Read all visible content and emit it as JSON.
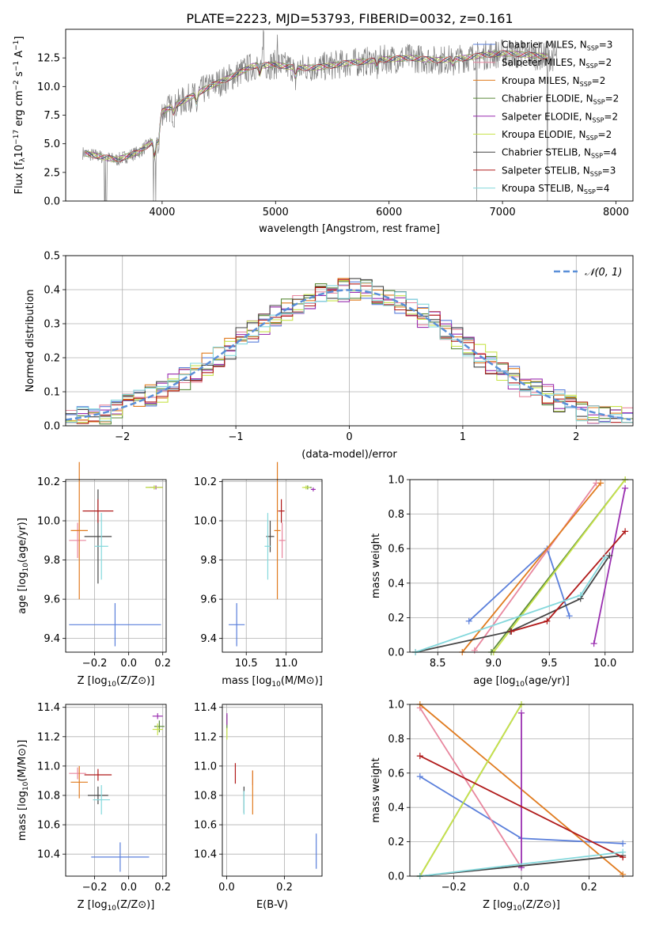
{
  "colors": {
    "Chabrier MILES": "#5a7fdb",
    "Salpeter MILES": "#e8869e",
    "Kroupa MILES": "#e07b1f",
    "Chabrier ELODIE": "#5b8a3a",
    "Salpeter ELODIE": "#9a2fb0",
    "Kroupa ELODIE": "#c8e34b",
    "Chabrier STELIB": "#444444",
    "Salpeter STELIB": "#b01a1a",
    "Kroupa STELIB": "#84d8dc",
    "gauss": "#5a8fd8",
    "grid": "#b0b0b0",
    "spectrum": "#808080"
  },
  "chart_data": [
    {
      "id": "spectrum",
      "type": "line",
      "title": "PLATE=2223, MJD=53793, FIBERID=0032, z=0.161",
      "xlabel": "wavelength [Angstrom, rest frame]",
      "ylabel_parts": [
        "Flux [f",
        "λ",
        "10",
        "−17",
        " erg cm",
        "−2",
        " s",
        "−1",
        " A",
        "−1",
        "]"
      ],
      "xlim": [
        3150,
        8150
      ],
      "ylim": [
        0,
        15
      ],
      "xticks": [
        "4000",
        "5000",
        "6000",
        "7000",
        "8000"
      ],
      "yticks": [
        "0.0",
        "2.5",
        "5.0",
        "7.5",
        "10.0",
        "12.5"
      ],
      "grid": false,
      "legend_position": "top-right",
      "x": [
        3300,
        3500,
        3600,
        3800,
        3950,
        4000,
        4200,
        4400,
        4600,
        4800,
        5000,
        5200,
        5400,
        5600,
        5800,
        6000,
        6200,
        6400,
        6600,
        6800,
        7000,
        7200,
        7400
      ],
      "flux": [
        4.2,
        3.8,
        3.6,
        4.3,
        5.5,
        7.8,
        8.8,
        9.9,
        10.8,
        11.8,
        11.9,
        11.6,
        11.7,
        12.0,
        12.2,
        12.4,
        12.5,
        12.3,
        12.4,
        12.7,
        12.9,
        12.8,
        12.6
      ],
      "series": [
        {
          "name": "Chabrier MILES",
          "nssp": "3"
        },
        {
          "name": "Salpeter MILES",
          "nssp": "2"
        },
        {
          "name": "Kroupa MILES",
          "nssp": "2"
        },
        {
          "name": "Chabrier ELODIE",
          "nssp": "2"
        },
        {
          "name": "Salpeter ELODIE",
          "nssp": "2"
        },
        {
          "name": "Kroupa ELODIE",
          "nssp": "2"
        },
        {
          "name": "Chabrier STELIB",
          "nssp": "4"
        },
        {
          "name": "Salpeter STELIB",
          "nssp": "3"
        },
        {
          "name": "Kroupa STELIB",
          "nssp": "4"
        }
      ]
    },
    {
      "id": "residuals",
      "type": "step",
      "xlabel": "(data-model)/error",
      "ylabel": "Normed distribution",
      "xlim": [
        -2.5,
        2.5
      ],
      "ylim": [
        0,
        0.5
      ],
      "xticks": [
        "−2",
        "−1",
        "0",
        "1",
        "2"
      ],
      "yticks": [
        "0.0",
        "0.1",
        "0.2",
        "0.3",
        "0.4",
        "0.5"
      ],
      "grid": true,
      "legend": "𝒩(0, 1)",
      "legend_position": "top-right"
    },
    {
      "id": "age_vs_Z",
      "type": "errorbar",
      "xlabel": "Z [log10(Z/Z⊙)]",
      "ylabel": "age  [log10(age/yr)]",
      "xlim": [
        -0.37,
        0.22
      ],
      "ylim": [
        9.33,
        10.21
      ],
      "xticks": [
        "−0.2",
        "0.0",
        "0.2"
      ],
      "yticks": [
        "9.4",
        "9.6",
        "9.8",
        "10.0",
        "10.2"
      ],
      "points": [
        {
          "series": "Chabrier MILES",
          "x": -0.08,
          "y": 9.47,
          "xerr": 0.27,
          "yerr": 0.11
        },
        {
          "series": "Salpeter MILES",
          "x": -0.3,
          "y": 9.9,
          "xerr": 0.05,
          "yerr": 0.09
        },
        {
          "series": "Kroupa MILES",
          "x": -0.29,
          "y": 9.95,
          "xerr": 0.05,
          "yerr": 0.35
        },
        {
          "series": "Chabrier ELODIE",
          "x": 0.15,
          "y": 10.17,
          "xerr": 0.05,
          "yerr": 0.01
        },
        {
          "series": "Salpeter ELODIE",
          "x": 0.16,
          "y": 10.17,
          "xerr": 0.04,
          "yerr": 0.01
        },
        {
          "series": "Kroupa ELODIE",
          "x": 0.15,
          "y": 10.17,
          "xerr": 0.05,
          "yerr": 0.01
        },
        {
          "series": "Chabrier STELIB",
          "x": -0.18,
          "y": 9.92,
          "xerr": 0.08,
          "yerr": 0.24
        },
        {
          "series": "Salpeter STELIB",
          "x": -0.18,
          "y": 10.05,
          "xerr": 0.09,
          "yerr": 0.06
        },
        {
          "series": "Kroupa STELIB",
          "x": -0.16,
          "y": 9.87,
          "xerr": 0.04,
          "yerr": 0.17
        }
      ]
    },
    {
      "id": "age_vs_mass",
      "type": "errorbar",
      "xlabel": "mass [log10(M/M⊙)]",
      "ylabel": "",
      "xlim": [
        10.2,
        11.45
      ],
      "ylim": [
        9.33,
        10.21
      ],
      "xticks": [
        "10.5",
        "11.0"
      ],
      "yticks": [
        "9.4",
        "9.6",
        "9.8",
        "10.0",
        "10.2"
      ],
      "points": [
        {
          "series": "Chabrier MILES",
          "x": 10.38,
          "y": 9.47,
          "xerr": 0.1,
          "yerr": 0.11
        },
        {
          "series": "Salpeter MILES",
          "x": 10.95,
          "y": 9.9,
          "xerr": 0.04,
          "yerr": 0.09
        },
        {
          "series": "Kroupa MILES",
          "x": 10.89,
          "y": 9.95,
          "xerr": 0.04,
          "yerr": 0.35
        },
        {
          "series": "Chabrier ELODIE",
          "x": 11.27,
          "y": 10.17,
          "xerr": 0.05,
          "yerr": 0.01
        },
        {
          "series": "Salpeter ELODIE",
          "x": 11.34,
          "y": 10.16,
          "xerr": 0.03,
          "yerr": 0.01
        },
        {
          "series": "Kroupa ELODIE",
          "x": 11.25,
          "y": 10.17,
          "xerr": 0.05,
          "yerr": 0.01
        },
        {
          "series": "Chabrier STELIB",
          "x": 10.8,
          "y": 9.92,
          "xerr": 0.05,
          "yerr": 0.08
        },
        {
          "series": "Salpeter STELIB",
          "x": 10.94,
          "y": 10.05,
          "xerr": 0.04,
          "yerr": 0.06
        },
        {
          "series": "Kroupa STELIB",
          "x": 10.77,
          "y": 9.87,
          "xerr": 0.04,
          "yerr": 0.17
        }
      ]
    },
    {
      "id": "mass_weight_vs_age",
      "type": "line",
      "xlabel": "age  [log10(age/yr)]",
      "ylabel": "mass weight",
      "xlim": [
        8.25,
        10.25
      ],
      "ylim": [
        0,
        1
      ],
      "xticks": [
        "8.5",
        "9.0",
        "9.5",
        "10.0"
      ],
      "yticks": [
        "0.0",
        "0.2",
        "0.4",
        "0.6",
        "0.8",
        "1.0"
      ],
      "grid": true,
      "series": [
        {
          "name": "Chabrier MILES",
          "x": [
            8.78,
            9.48,
            9.68
          ],
          "y": [
            0.18,
            0.6,
            0.21
          ]
        },
        {
          "name": "Salpeter MILES",
          "x": [
            8.83,
            9.92
          ],
          "y": [
            0.01,
            0.98
          ]
        },
        {
          "name": "Kroupa MILES",
          "x": [
            8.72,
            9.96
          ],
          "y": [
            0.0,
            0.98
          ]
        },
        {
          "name": "Chabrier ELODIE",
          "x": [
            8.98,
            10.18
          ],
          "y": [
            0.0,
            1.0
          ]
        },
        {
          "name": "Salpeter ELODIE",
          "x": [
            9.9,
            10.18
          ],
          "y": [
            0.05,
            0.95
          ]
        },
        {
          "name": "Kroupa ELODIE",
          "x": [
            9.0,
            10.18
          ],
          "y": [
            0.0,
            1.0
          ]
        },
        {
          "name": "Chabrier STELIB",
          "x": [
            8.3,
            9.15,
            9.78,
            10.04
          ],
          "y": [
            0.0,
            0.12,
            0.31,
            0.56
          ]
        },
        {
          "name": "Salpeter STELIB",
          "x": [
            9.16,
            9.48,
            10.18
          ],
          "y": [
            0.12,
            0.18,
            0.7
          ]
        },
        {
          "name": "Kroupa STELIB",
          "x": [
            8.3,
            9.78,
            10.0
          ],
          "y": [
            0.0,
            0.33,
            0.55
          ]
        }
      ]
    },
    {
      "id": "mass_vs_Z",
      "type": "errorbar",
      "xlabel": "Z [log10(Z/Z⊙)]",
      "ylabel": "mass [log10(M/M⊙)]",
      "xlim": [
        -0.37,
        0.22
      ],
      "ylim": [
        10.25,
        11.42
      ],
      "xticks": [
        "−0.2",
        "0.0",
        "0.2"
      ],
      "yticks": [
        "10.4",
        "10.6",
        "10.8",
        "11.0",
        "11.2",
        "11.4"
      ],
      "points": [
        {
          "series": "Chabrier MILES",
          "x": -0.05,
          "y": 10.38,
          "xerr": 0.17,
          "yerr": 0.1
        },
        {
          "series": "Salpeter MILES",
          "x": -0.3,
          "y": 10.95,
          "xerr": 0.05,
          "yerr": 0.04
        },
        {
          "series": "Kroupa MILES",
          "x": -0.29,
          "y": 10.89,
          "xerr": 0.05,
          "yerr": 0.11
        },
        {
          "series": "Chabrier ELODIE",
          "x": 0.18,
          "y": 11.27,
          "xerr": 0.03,
          "yerr": 0.04
        },
        {
          "series": "Salpeter ELODIE",
          "x": 0.17,
          "y": 11.34,
          "xerr": 0.03,
          "yerr": 0.02
        },
        {
          "series": "Kroupa ELODIE",
          "x": 0.17,
          "y": 11.25,
          "xerr": 0.03,
          "yerr": 0.04
        },
        {
          "series": "Chabrier STELIB",
          "x": -0.18,
          "y": 10.8,
          "xerr": 0.06,
          "yerr": 0.06
        },
        {
          "series": "Salpeter STELIB",
          "x": -0.18,
          "y": 10.94,
          "xerr": 0.08,
          "yerr": 0.04
        },
        {
          "series": "Kroupa STELIB",
          "x": -0.16,
          "y": 10.77,
          "xerr": 0.05,
          "yerr": 0.1
        }
      ]
    },
    {
      "id": "mass_vs_ebv",
      "type": "errorbar",
      "xlabel": "E(B-V)",
      "ylabel": "",
      "xlim": [
        -0.015,
        0.33
      ],
      "ylim": [
        10.25,
        11.42
      ],
      "xticks": [
        "0.0",
        "0.2"
      ],
      "yticks": [
        "10.4",
        "10.6",
        "10.8",
        "11.0",
        "11.2",
        "11.4"
      ],
      "points": [
        {
          "series": "Chabrier MILES",
          "x": 0.31,
          "y": 10.42,
          "xerr": 0,
          "yerr": 0.12
        },
        {
          "series": "Salpeter MILES",
          "x": 0.09,
          "y": 10.92,
          "xerr": 0,
          "yerr": 0.05
        },
        {
          "series": "Kroupa MILES",
          "x": 0.09,
          "y": 10.82,
          "xerr": 0,
          "yerr": 0.15
        },
        {
          "series": "Chabrier ELODIE",
          "x": 0.001,
          "y": 11.3,
          "xerr": 0,
          "yerr": 0.05
        },
        {
          "series": "Salpeter ELODIE",
          "x": 0.001,
          "y": 11.32,
          "xerr": 0,
          "yerr": 0.04
        },
        {
          "series": "Kroupa ELODIE",
          "x": 0.001,
          "y": 11.22,
          "xerr": 0,
          "yerr": 0.04
        },
        {
          "series": "Chabrier STELIB",
          "x": 0.06,
          "y": 10.77,
          "xerr": 0,
          "yerr": 0.09
        },
        {
          "series": "Salpeter STELIB",
          "x": 0.03,
          "y": 10.95,
          "xerr": 0,
          "yerr": 0.07
        },
        {
          "series": "Kroupa STELIB",
          "x": 0.06,
          "y": 10.75,
          "xerr": 0,
          "yerr": 0.08
        }
      ]
    },
    {
      "id": "mass_weight_vs_Z",
      "type": "line",
      "xlabel": "Z [log10(Z/Z⊙)]",
      "ylabel": "mass weight",
      "xlim": [
        -0.33,
        0.33
      ],
      "ylim": [
        0,
        1
      ],
      "xticks": [
        "−0.2",
        "0.0",
        "0.2"
      ],
      "yticks": [
        "0.0",
        "0.2",
        "0.4",
        "0.6",
        "0.8",
        "1.0"
      ],
      "grid": true,
      "series": [
        {
          "name": "Chabrier MILES",
          "x": [
            -0.3,
            0.0,
            0.3
          ],
          "y": [
            0.58,
            0.22,
            0.19
          ]
        },
        {
          "name": "Salpeter MILES",
          "x": [
            -0.3,
            0.0
          ],
          "y": [
            0.98,
            0.05
          ]
        },
        {
          "name": "Kroupa MILES",
          "x": [
            -0.3,
            0.3
          ],
          "y": [
            1.0,
            0.01
          ]
        },
        {
          "name": "Chabrier ELODIE",
          "x": [
            -0.3,
            0.0
          ],
          "y": [
            0.0,
            1.0
          ]
        },
        {
          "name": "Salpeter ELODIE",
          "x": [
            0.0,
            0.0
          ],
          "y": [
            0.05,
            0.95
          ]
        },
        {
          "name": "Kroupa ELODIE",
          "x": [
            -0.3,
            0.0
          ],
          "y": [
            0.0,
            1.0
          ]
        },
        {
          "name": "Chabrier STELIB",
          "x": [
            -0.3,
            0.3
          ],
          "y": [
            0.0,
            0.12
          ]
        },
        {
          "name": "Salpeter STELIB",
          "x": [
            -0.3,
            0.3
          ],
          "y": [
            0.7,
            0.11
          ]
        },
        {
          "name": "Kroupa STELIB",
          "x": [
            -0.3,
            0.3
          ],
          "y": [
            0.0,
            0.14
          ]
        }
      ]
    }
  ]
}
